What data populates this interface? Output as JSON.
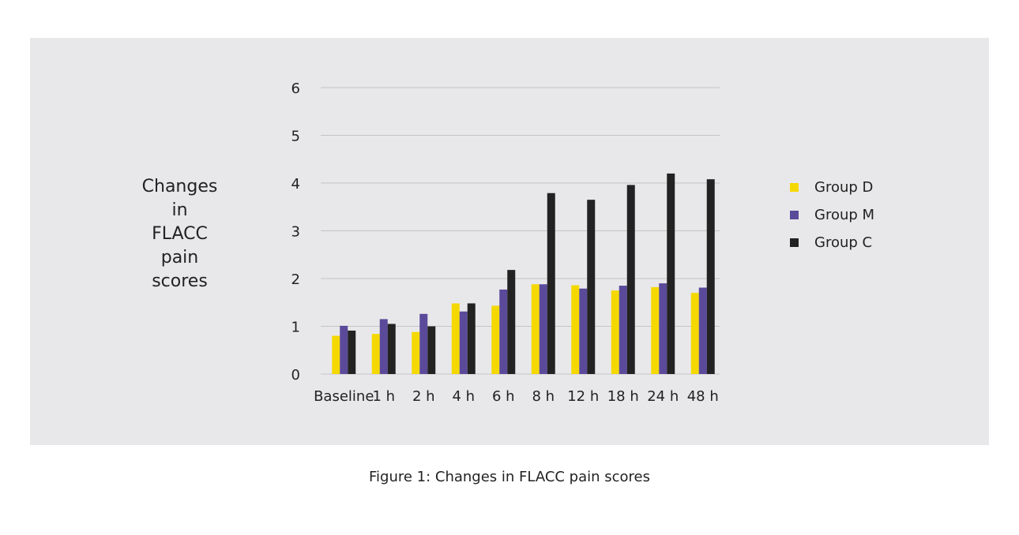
{
  "figure": {
    "caption": "Figure 1: Changes in FLACC pain scores"
  },
  "chart_data": {
    "type": "bar",
    "title": "",
    "xlabel": "",
    "ylabel_lines": [
      "Changes",
      "in",
      "FLACC",
      "pain",
      "scores"
    ],
    "ylim": [
      0,
      6
    ],
    "yticks": [
      "0",
      "1",
      "2",
      "3",
      "4",
      "5",
      "6"
    ],
    "grid": true,
    "legend_position": "right",
    "categories": [
      "Baseline",
      "1 h",
      "2 h",
      "4 h",
      "6 h",
      "8 h",
      "12 h",
      "18 h",
      "24 h",
      "48 h"
    ],
    "series": [
      {
        "name": "Group D",
        "color": "#f5d800",
        "values": [
          0.8,
          0.84,
          0.88,
          1.48,
          1.43,
          1.88,
          1.86,
          1.75,
          1.82,
          1.7
        ]
      },
      {
        "name": "Group M",
        "color": "#5b4a9a",
        "values": [
          1.01,
          1.15,
          1.26,
          1.31,
          1.77,
          1.88,
          1.79,
          1.85,
          1.9,
          1.81
        ]
      },
      {
        "name": "Group C",
        "color": "#222222",
        "values": [
          0.91,
          1.05,
          1.0,
          1.48,
          2.18,
          3.79,
          3.65,
          3.96,
          4.2,
          4.08
        ]
      }
    ]
  }
}
